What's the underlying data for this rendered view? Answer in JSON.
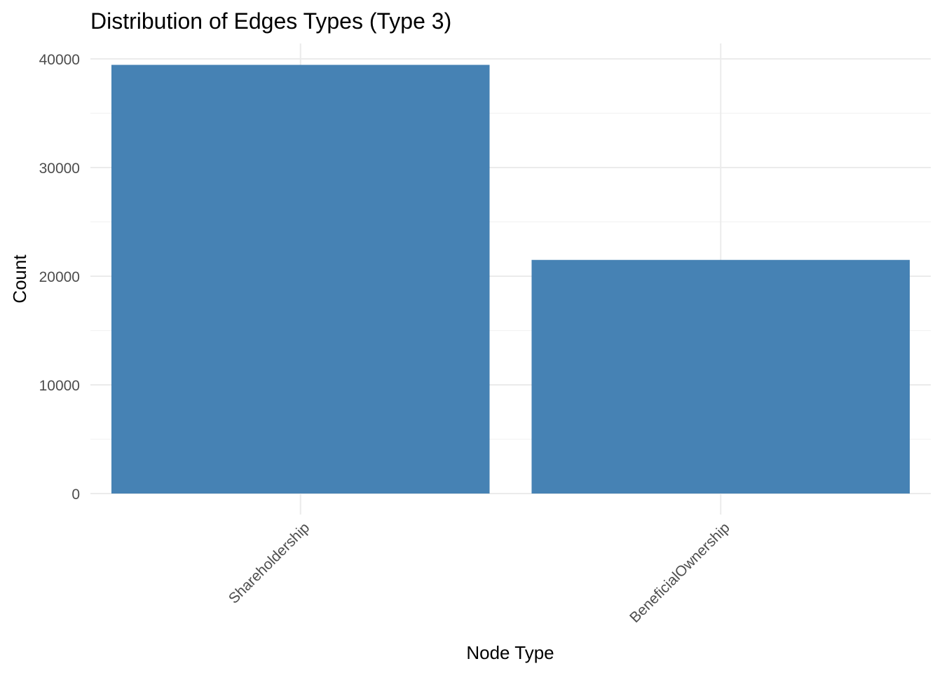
{
  "chart_data": {
    "type": "bar",
    "title": "Distribution of Edges Types (Type 3)",
    "xlabel": "Node Type",
    "ylabel": "Count",
    "categories": [
      "Shareholdership",
      "BeneficialOwnership"
    ],
    "values": [
      39450,
      21500
    ],
    "ylim": [
      0,
      40000
    ],
    "yticks": [
      0,
      10000,
      20000,
      30000,
      40000
    ],
    "ytick_labels": [
      "0",
      "10000",
      "20000",
      "30000",
      "40000"
    ],
    "grid": true,
    "legend": "none",
    "bar_color": "#4682B4"
  }
}
